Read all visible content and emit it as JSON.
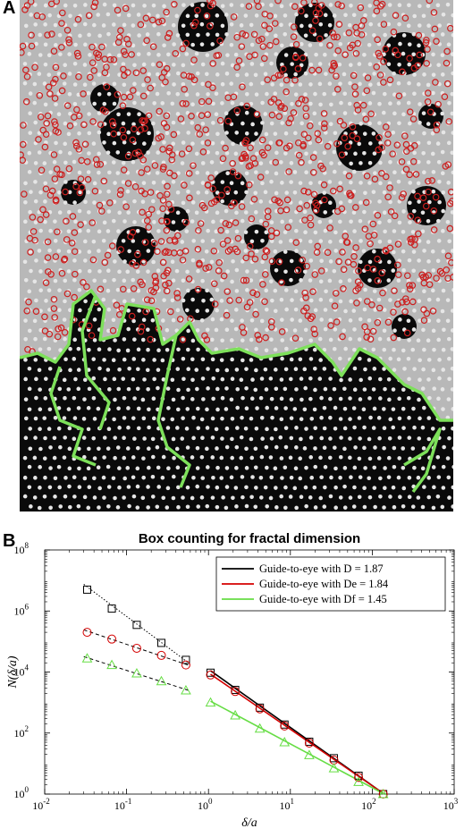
{
  "panel_a": {
    "label": "A",
    "colors": {
      "dense": "#0a0a0a",
      "dilute": "#b8b8b8",
      "particle": "#e6e6e6",
      "ring": "#cc1f1f",
      "outline": "#7de05a"
    }
  },
  "panel_b": {
    "label": "B"
  },
  "chart_data": {
    "type": "scatter",
    "title": "Box counting for fractal dimension",
    "xlabel": "δ/a",
    "ylabel": "N(δ/a)",
    "xscale": "log",
    "yscale": "log",
    "xlim": [
      0.01,
      1000
    ],
    "ylim": [
      1,
      100000000
    ],
    "x_ticks": [
      {
        "value": 0.01,
        "label": "10",
        "exp": "-2"
      },
      {
        "value": 0.1,
        "label": "10",
        "exp": "-1"
      },
      {
        "value": 1,
        "label": "10",
        "exp": "0"
      },
      {
        "value": 10,
        "label": "10",
        "exp": "1"
      },
      {
        "value": 100,
        "label": "10",
        "exp": "2"
      },
      {
        "value": 1000,
        "label": "10",
        "exp": "3"
      }
    ],
    "y_ticks": [
      {
        "value": 1,
        "label": "10",
        "exp": "0"
      },
      {
        "value": 100,
        "label": "10",
        "exp": "2"
      },
      {
        "value": 10000,
        "label": "10",
        "exp": "4"
      },
      {
        "value": 1000000,
        "label": "10",
        "exp": "6"
      },
      {
        "value": 100000000,
        "label": "10",
        "exp": "8"
      }
    ],
    "grid": false,
    "legend_position": "top-right",
    "legend": [
      {
        "text": "Guide-to-eye with D = 1.87",
        "color": "#000000"
      },
      {
        "text": "Guide-to-eye with De = 1.84",
        "color": "#d40000"
      },
      {
        "text": "Guide-to-eye with Df = 1.45",
        "color": "#66dd44"
      }
    ],
    "series": [
      {
        "marker": "square",
        "color": "#000000",
        "x": [
          0.033,
          0.066,
          0.133,
          0.266,
          0.53
        ],
        "y": [
          5000000,
          1200000,
          350000,
          90000,
          25000
        ]
      },
      {
        "marker": "circle",
        "color": "#d40000",
        "x": [
          0.033,
          0.066,
          0.133,
          0.266,
          0.53
        ],
        "y": [
          200000,
          120000,
          60000,
          35000,
          17000
        ]
      },
      {
        "marker": "triangle",
        "color": "#66dd44",
        "x": [
          0.033,
          0.066,
          0.133,
          0.266,
          0.53
        ],
        "y": [
          28000,
          17000,
          9000,
          5000,
          2500
        ]
      },
      {
        "marker": "square",
        "color": "#000000",
        "x": [
          1.06,
          2.12,
          4.24,
          8.48,
          17,
          34,
          68,
          136
        ],
        "y": [
          9500,
          2600,
          680,
          190,
          52,
          15,
          4,
          1
        ]
      },
      {
        "marker": "circle",
        "color": "#d40000",
        "x": [
          1.06,
          2.12,
          4.24,
          8.48,
          17,
          34,
          68,
          136
        ],
        "y": [
          8000,
          2300,
          620,
          170,
          47,
          13,
          3.5,
          1
        ]
      },
      {
        "marker": "triangle",
        "color": "#66dd44",
        "x": [
          1.06,
          2.12,
          4.24,
          8.48,
          17,
          34,
          68,
          136
        ],
        "y": [
          1000,
          380,
          140,
          50,
          19,
          7,
          2.5,
          1
        ]
      }
    ],
    "fit_lines": [
      {
        "style": "dotted",
        "color": "#000000",
        "x": [
          0.03,
          0.6
        ],
        "y": [
          7500000,
          18000
        ]
      },
      {
        "style": "dashed",
        "color": "#000000",
        "x": [
          0.03,
          0.6
        ],
        "y": [
          240000,
          16000
        ]
      },
      {
        "style": "dashed",
        "color": "#000000",
        "x": [
          0.03,
          0.6
        ],
        "y": [
          32000,
          2400
        ]
      },
      {
        "style": "solid",
        "color": "#000000",
        "x": [
          1.06,
          140
        ],
        "y": [
          11000,
          1
        ]
      },
      {
        "style": "solid",
        "color": "#d40000",
        "x": [
          1.06,
          140
        ],
        "y": [
          8500,
          1
        ]
      },
      {
        "style": "solid",
        "color": "#66dd44",
        "x": [
          1.06,
          140
        ],
        "y": [
          1100,
          1
        ]
      }
    ]
  }
}
